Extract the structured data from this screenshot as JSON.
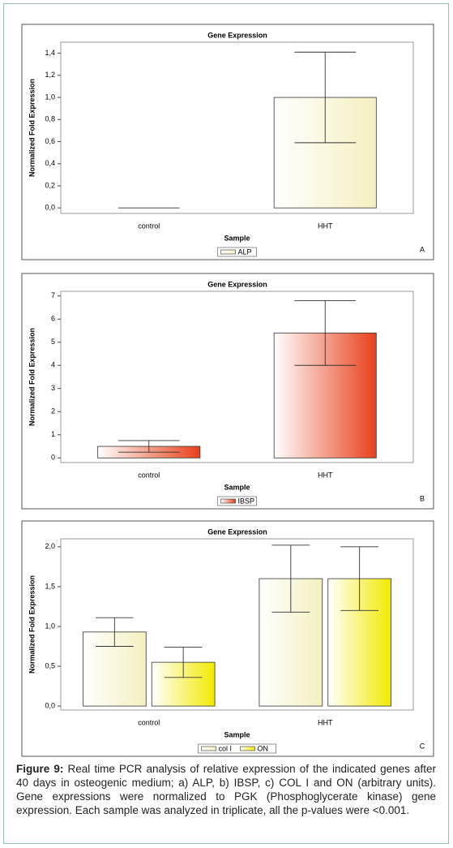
{
  "chart_data": [
    {
      "type": "bar",
      "title": "Gene Expression",
      "ylabel": "Normalized Fold Expression",
      "xlabel": "Sample",
      "panel_label": "A",
      "categories": [
        "control",
        "HHT"
      ],
      "series": [
        {
          "name": "ALP",
          "color": "#f4f0c0",
          "values": [
            0,
            1.0
          ],
          "errors": [
            0,
            0.41
          ]
        }
      ],
      "ylim": [
        -0.05,
        1.5
      ],
      "yticks": [
        {
          "value": 0,
          "label": "0,0"
        },
        {
          "value": 0.2,
          "label": "0,2"
        },
        {
          "value": 0.4,
          "label": "0,4"
        },
        {
          "value": 0.6,
          "label": "0,6"
        },
        {
          "value": 0.8,
          "label": "0,8"
        },
        {
          "value": 1.0,
          "label": "1,0"
        },
        {
          "value": 1.2,
          "label": "1,2"
        },
        {
          "value": 1.4,
          "label": "1,4"
        }
      ]
    },
    {
      "type": "bar",
      "title": "Gene Expression",
      "ylabel": "Normalized Fold Expression",
      "xlabel": "Sample",
      "panel_label": "B",
      "categories": [
        "control",
        "HHT"
      ],
      "series": [
        {
          "name": "IBSP",
          "color": "#e8401a",
          "values": [
            0.5,
            5.4
          ],
          "errors": [
            0.25,
            1.4
          ]
        }
      ],
      "ylim": [
        -0.2,
        7.2
      ],
      "yticks": [
        0,
        1,
        2,
        3,
        4,
        5,
        6,
        7
      ]
    },
    {
      "type": "bar",
      "title": "Gene Expression",
      "ylabel": "Normalized Fold Expression",
      "xlabel": "Sample",
      "panel_label": "C",
      "categories": [
        "control",
        "HHT"
      ],
      "series": [
        {
          "name": "col I",
          "color": "#f4f0c0",
          "values": [
            0.93,
            1.6
          ],
          "errors": [
            0.18,
            0.42
          ]
        },
        {
          "name": "ON",
          "color": "#f2ea00",
          "values": [
            0.55,
            1.6
          ],
          "errors": [
            0.19,
            0.4
          ]
        }
      ],
      "ylim": [
        -0.05,
        2.1
      ],
      "yticks": [
        {
          "value": 0,
          "label": "0,0"
        },
        {
          "value": 0.5,
          "label": "0,5"
        },
        {
          "value": 1.0,
          "label": "1,0"
        },
        {
          "value": 1.5,
          "label": "1,5"
        },
        {
          "value": 2.0,
          "label": "2,0"
        }
      ]
    }
  ],
  "caption": {
    "label": "Figure 9:",
    "text": "Real time PCR analysis of relative expression of the indicated genes after 40 days in osteogenic medium; a) ALP, b) IBSP, c) COL I and ON (arbitrary units). Gene expressions were normalized to PGK (Phosphoglycerate kinase) gene expression. Each sample was analyzed in triplicate, all the p-values were <0.001."
  }
}
